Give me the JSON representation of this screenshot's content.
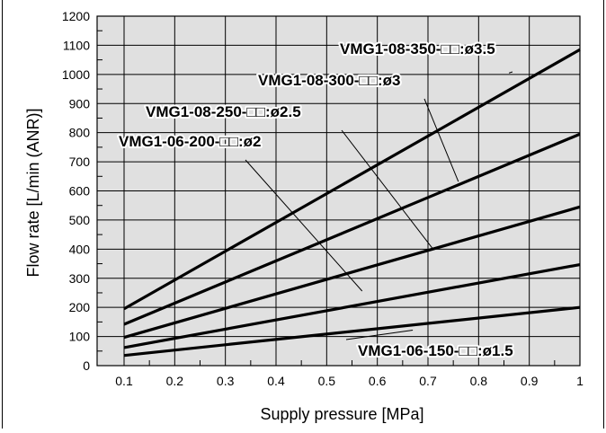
{
  "chart_data": {
    "type": "line",
    "title": "",
    "xlabel": "Supply pressure [MPa]",
    "ylabel": "Flow rate [L/min (ANR)]",
    "xlim": [
      0,
      1
    ],
    "ylim": [
      0,
      1200
    ],
    "x_ticks": [
      "0.1",
      "0.2",
      "0.3",
      "0.4",
      "0.5",
      "0.6",
      "0.7",
      "0.8",
      "0.9",
      "1"
    ],
    "x_tick_values": [
      0.1,
      0.2,
      0.3,
      0.4,
      0.5,
      0.6,
      0.7,
      0.8,
      0.9,
      1.0
    ],
    "y_ticks": [
      "0",
      "100",
      "200",
      "300",
      "400",
      "500",
      "600",
      "700",
      "800",
      "900",
      "1000",
      "1100",
      "1200"
    ],
    "y_tick_values": [
      0,
      100,
      200,
      300,
      400,
      500,
      600,
      700,
      800,
      900,
      1000,
      1100,
      1200
    ],
    "grid": true,
    "background_color": "#e0e0e0",
    "line_color": "#000000",
    "series": [
      {
        "name": "VMG1-08-350-□□:ø3.5",
        "x": [
          0.1,
          1.0
        ],
        "y": [
          195,
          1085
        ]
      },
      {
        "name": "VMG1-08-300-□□:ø3",
        "x": [
          0.1,
          1.0
        ],
        "y": [
          142,
          795
        ]
      },
      {
        "name": "VMG1-08-250-□□:ø2.5",
        "x": [
          0.1,
          1.0
        ],
        "y": [
          97,
          545
        ]
      },
      {
        "name": "VMG1-06-200-□□:ø2",
        "x": [
          0.1,
          1.0
        ],
        "y": [
          62,
          347
        ]
      },
      {
        "name": "VMG1-06-150-□□:ø1.5",
        "x": [
          0.1,
          1.0
        ],
        "y": [
          35,
          200
        ]
      }
    ],
    "annotations": [
      {
        "series": 0,
        "text_main": "VMG1-08-350-□□:",
        "text_dia": "ø3.5",
        "point": [
          0.86,
          1005
        ]
      },
      {
        "series": 1,
        "text_main": "VMG1-08-300-□□:",
        "text_dia": "ø3",
        "point": [
          0.76,
          632
        ]
      },
      {
        "series": 2,
        "text_main": "VMG1-08-250-□□:",
        "text_dia": "ø2.5",
        "point": [
          0.71,
          400
        ]
      },
      {
        "series": 3,
        "text_main": "VMG1-06-200-□□:",
        "text_dia": "ø2",
        "point": [
          0.57,
          256
        ]
      },
      {
        "series": 4,
        "text_main": "VMG1-06-150-□□:",
        "text_dia": "ø1.5",
        "point": [
          0.67,
          122
        ]
      }
    ]
  }
}
